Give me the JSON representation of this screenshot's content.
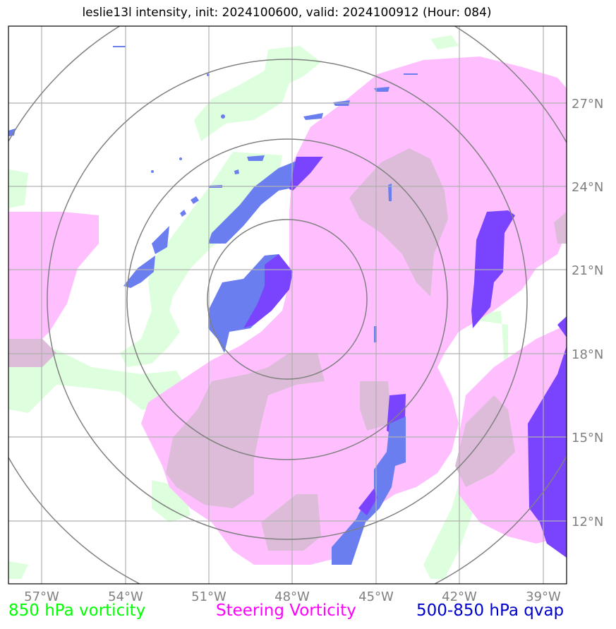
{
  "title": "leslie13l intensity, init: 2024100600, valid: 2024100912 (Hour: 084)",
  "map": {
    "lon_ticks": [
      "57°W",
      "54°W",
      "51°W",
      "48°W",
      "45°W",
      "42°W",
      "39°W"
    ],
    "lat_ticks": [
      "27°N",
      "24°N",
      "21°N",
      "18°N",
      "15°N",
      "12°N"
    ]
  },
  "legend": {
    "items": [
      {
        "label": "850 hPa vorticity",
        "color": "#00ff00"
      },
      {
        "label": "Steering Vorticity",
        "color": "#ff00ff"
      },
      {
        "label": "500-850 hPa qvap",
        "color": "#0000cc"
      }
    ]
  },
  "colors": {
    "vorticity_850": "#ddffdd",
    "steering": "#ffbfff",
    "steering_overlap": "#dcbcd8",
    "qvap": "#6a7ef0",
    "qvap_strong": "#7a44ff",
    "range_rings": "#808080",
    "grid": "#b0b0b0"
  }
}
